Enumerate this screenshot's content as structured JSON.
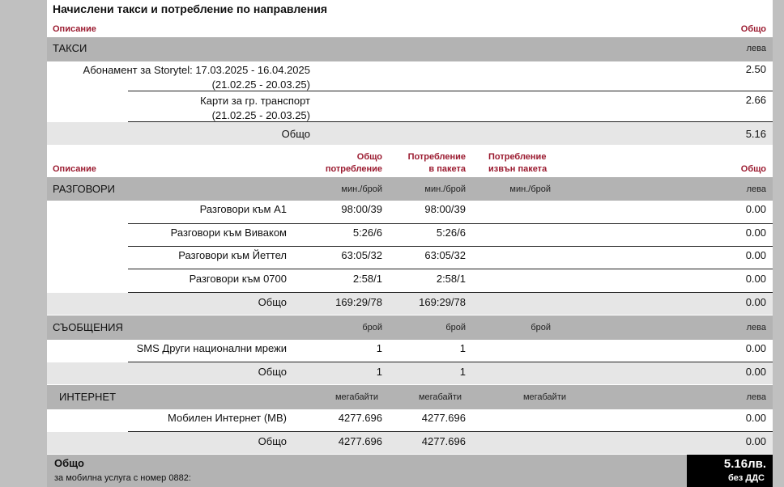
{
  "title": "Начислени такси и потребление по направления",
  "fees": {
    "header": {
      "description": "Описание",
      "total": "Общо"
    },
    "section": {
      "name": "ТАКСИ",
      "unit": "лева"
    },
    "rows": [
      {
        "line1": "Абонамент за Storytel: 17.03.2025 - 16.04.2025",
        "line2": "(21.02.25 - 20.03.25)",
        "value": "2.50"
      },
      {
        "line1": "Карти за гр. транспорт",
        "line2": "(21.02.25 - 20.03.25)",
        "value": "2.66"
      }
    ],
    "total": {
      "label": "Общо",
      "value": "5.16"
    }
  },
  "usage_header": {
    "description": "Описание",
    "total_usage_1": "Общо",
    "total_usage_2": "потребление",
    "in_package_1": "Потребление",
    "in_package_2": "в пакета",
    "out_package_1": "Потребление",
    "out_package_2": "извън пакета",
    "total": "Общо"
  },
  "calls": {
    "section": {
      "name": "РАЗГОВОРИ",
      "unit_total": "мин./брой",
      "unit_in": "мин./брой",
      "unit_out": "мин./брой",
      "unit_amount": "лева"
    },
    "rows": [
      {
        "label": "Разговори към А1",
        "total": "98:00/39",
        "in": "98:00/39",
        "out": "",
        "amount": "0.00"
      },
      {
        "label": "Разговори към Виваком",
        "total": "5:26/6",
        "in": "5:26/6",
        "out": "",
        "amount": "0.00"
      },
      {
        "label": "Разговори към Йеттел",
        "total": "63:05/32",
        "in": "63:05/32",
        "out": "",
        "amount": "0.00"
      },
      {
        "label": "Разговори към 0700",
        "total": "2:58/1",
        "in": "2:58/1",
        "out": "",
        "amount": "0.00"
      }
    ],
    "sum": {
      "label": "Общо",
      "total": "169:29/78",
      "in": "169:29/78",
      "amount": "0.00"
    }
  },
  "messages": {
    "section": {
      "name": "СЪОБЩЕНИЯ",
      "unit_total": "брой",
      "unit_in": "брой",
      "unit_out": "брой",
      "unit_amount": "лева"
    },
    "rows": [
      {
        "label": "SMS Други национални мрежи",
        "total": "1",
        "in": "1",
        "amount": "0.00"
      }
    ],
    "sum": {
      "label": "Общо",
      "total": "1",
      "in": "1",
      "amount": "0.00"
    }
  },
  "internet": {
    "section": {
      "name": "ИНТЕРНЕТ",
      "unit_total": "мегабайти",
      "unit_in": "мегабайти",
      "unit_out": "мегабайти",
      "unit_amount": "лева"
    },
    "rows": [
      {
        "label": "Мобилен Интернет (MB)",
        "total": "4277.696",
        "in": "4277.696",
        "amount": "0.00"
      }
    ],
    "sum": {
      "label": "Общо",
      "total": "4277.696",
      "in": "4277.696",
      "amount": "0.00"
    }
  },
  "footer": {
    "label": "Общо",
    "sublabel": "за мобилна услуга с номер 0882:",
    "amount": "5.16лв.",
    "note": "без ДДС"
  }
}
